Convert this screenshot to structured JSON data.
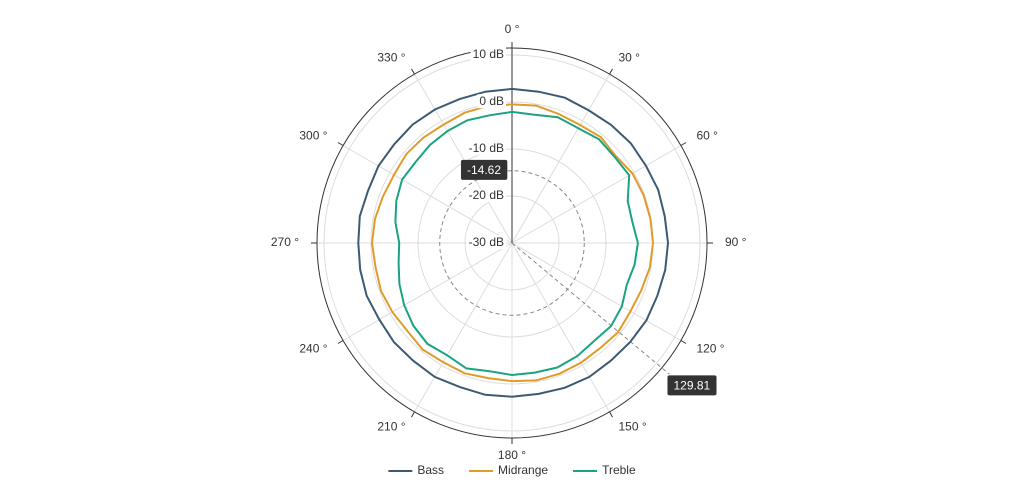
{
  "chart_data": {
    "type": "polar-line",
    "x": [
      0,
      10,
      20,
      30,
      40,
      50,
      60,
      70,
      80,
      90,
      100,
      110,
      120,
      130,
      140,
      150,
      160,
      170,
      180,
      190,
      200,
      210,
      220,
      230,
      240,
      250,
      260,
      270,
      280,
      290,
      300,
      310,
      320,
      330,
      340,
      350
    ],
    "series": [
      {
        "name": "Bass",
        "color": "#3d5a73",
        "values": [
          2.8,
          2.7,
          2.9,
          2.6,
          2.8,
          3.0,
          2.9,
          3.1,
          3.0,
          3.2,
          3.1,
          2.9,
          3.0,
          2.8,
          2.7,
          2.9,
          2.8,
          2.6,
          2.7,
          2.8,
          2.6,
          2.9,
          2.7,
          2.8,
          2.6,
          2.9,
          2.8,
          2.7,
          2.9,
          2.6,
          2.8,
          2.7,
          2.9,
          2.8,
          2.6,
          2.7
        ]
      },
      {
        "name": "Midrange",
        "color": "#e09b2a",
        "values": [
          -0.5,
          -0.3,
          -0.8,
          -1.0,
          -0.6,
          -1.2,
          -0.4,
          -0.2,
          -0.1,
          0.0,
          -0.2,
          -0.7,
          -0.9,
          -0.5,
          -0.8,
          -0.6,
          -0.4,
          -0.3,
          -0.6,
          -0.8,
          -0.5,
          -0.7,
          -0.4,
          -0.9,
          -0.6,
          -0.3,
          -0.5,
          -0.2,
          -0.4,
          -0.8,
          -1.0,
          -0.6,
          -0.7,
          -0.9,
          -0.5,
          -0.4
        ]
      },
      {
        "name": "Treble",
        "color": "#1aa383",
        "values": [
          -2.1,
          -2.3,
          -1.5,
          -1.8,
          -1.2,
          -1.5,
          -1.2,
          -3.8,
          -4.0,
          -3.2,
          -3.5,
          -4.0,
          -3.0,
          -2.5,
          -2.8,
          -2.2,
          -1.8,
          -2.0,
          -1.9,
          -2.3,
          -1.6,
          -2.4,
          -2.0,
          -2.6,
          -3.5,
          -4.5,
          -5.5,
          -6.0,
          -4.8,
          -3.8,
          -3.0,
          -3.2,
          -2.8,
          -2.5,
          -2.2,
          -2.4
        ]
      }
    ],
    "xlim": [
      0,
      360
    ],
    "xticks": [
      {
        "value": 0,
        "label": "0 °"
      },
      {
        "value": 30,
        "label": "30 °"
      },
      {
        "value": 60,
        "label": "60 °"
      },
      {
        "value": 90,
        "label": "90 °"
      },
      {
        "value": 120,
        "label": "120 °"
      },
      {
        "value": 150,
        "label": "150 °"
      },
      {
        "value": 180,
        "label": "180 °"
      },
      {
        "value": 210,
        "label": "210 °"
      },
      {
        "value": 240,
        "label": "240 °"
      },
      {
        "value": 270,
        "label": "270 °"
      },
      {
        "value": 300,
        "label": "300 °"
      },
      {
        "value": 330,
        "label": "330 °"
      }
    ],
    "ylim": [
      -30,
      11.5
    ],
    "yticks": [
      {
        "value": -30,
        "label": "-30 dB"
      },
      {
        "value": -20,
        "label": "-20 dB"
      },
      {
        "value": -10,
        "label": "-10 dB"
      },
      {
        "value": 0,
        "label": "0 dB"
      },
      {
        "value": 10,
        "label": "10 dB"
      }
    ],
    "crosshair": {
      "angle": 129.81,
      "value": -14.62
    },
    "grid": true,
    "legend": "bottom"
  }
}
